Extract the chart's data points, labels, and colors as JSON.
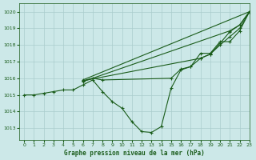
{
  "background_color": "#cce8e8",
  "grid_color": "#aacccc",
  "line_color": "#1a5c1a",
  "title": "Graphe pression niveau de la mer (hPa)",
  "xlim": [
    -0.5,
    23
  ],
  "ylim": [
    1012.3,
    1020.5
  ],
  "xticks": [
    0,
    1,
    2,
    3,
    4,
    5,
    6,
    7,
    8,
    9,
    10,
    11,
    12,
    13,
    14,
    15,
    16,
    17,
    18,
    19,
    20,
    21,
    22,
    23
  ],
  "yticks": [
    1013,
    1014,
    1015,
    1016,
    1017,
    1018,
    1019,
    1020
  ],
  "series": [
    {
      "x": [
        0,
        1,
        2,
        3,
        4,
        5,
        6,
        7,
        8,
        9,
        10,
        11,
        12,
        13,
        14,
        15,
        16,
        17,
        18,
        19,
        20,
        21,
        22,
        23
      ],
      "y": [
        1015.0,
        1015.0,
        1015.1,
        1015.2,
        1015.3,
        1015.3,
        1015.6,
        1015.9,
        1015.2,
        1014.6,
        1014.2,
        1013.4,
        1012.8,
        1012.75,
        1013.1,
        1015.4,
        1016.5,
        1016.7,
        1017.5,
        1017.5,
        1018.2,
        1018.2,
        1018.85,
        1020.0
      ]
    },
    {
      "x": [
        6,
        23
      ],
      "y": [
        1015.9,
        1020.0
      ]
    },
    {
      "x": [
        6,
        21,
        22,
        23
      ],
      "y": [
        1015.8,
        1018.85,
        1019.2,
        1020.0
      ]
    },
    {
      "x": [
        6,
        18,
        19,
        20,
        21,
        22,
        23
      ],
      "y": [
        1015.85,
        1017.2,
        1017.45,
        1018.0,
        1018.5,
        1019.0,
        1020.0
      ]
    },
    {
      "x": [
        6,
        7,
        8,
        15,
        16,
        17,
        18,
        19,
        20,
        21,
        22,
        23
      ],
      "y": [
        1015.85,
        1016.0,
        1015.9,
        1016.0,
        1016.55,
        1016.7,
        1017.2,
        1017.45,
        1018.1,
        1018.8,
        1019.2,
        1020.0
      ]
    }
  ]
}
